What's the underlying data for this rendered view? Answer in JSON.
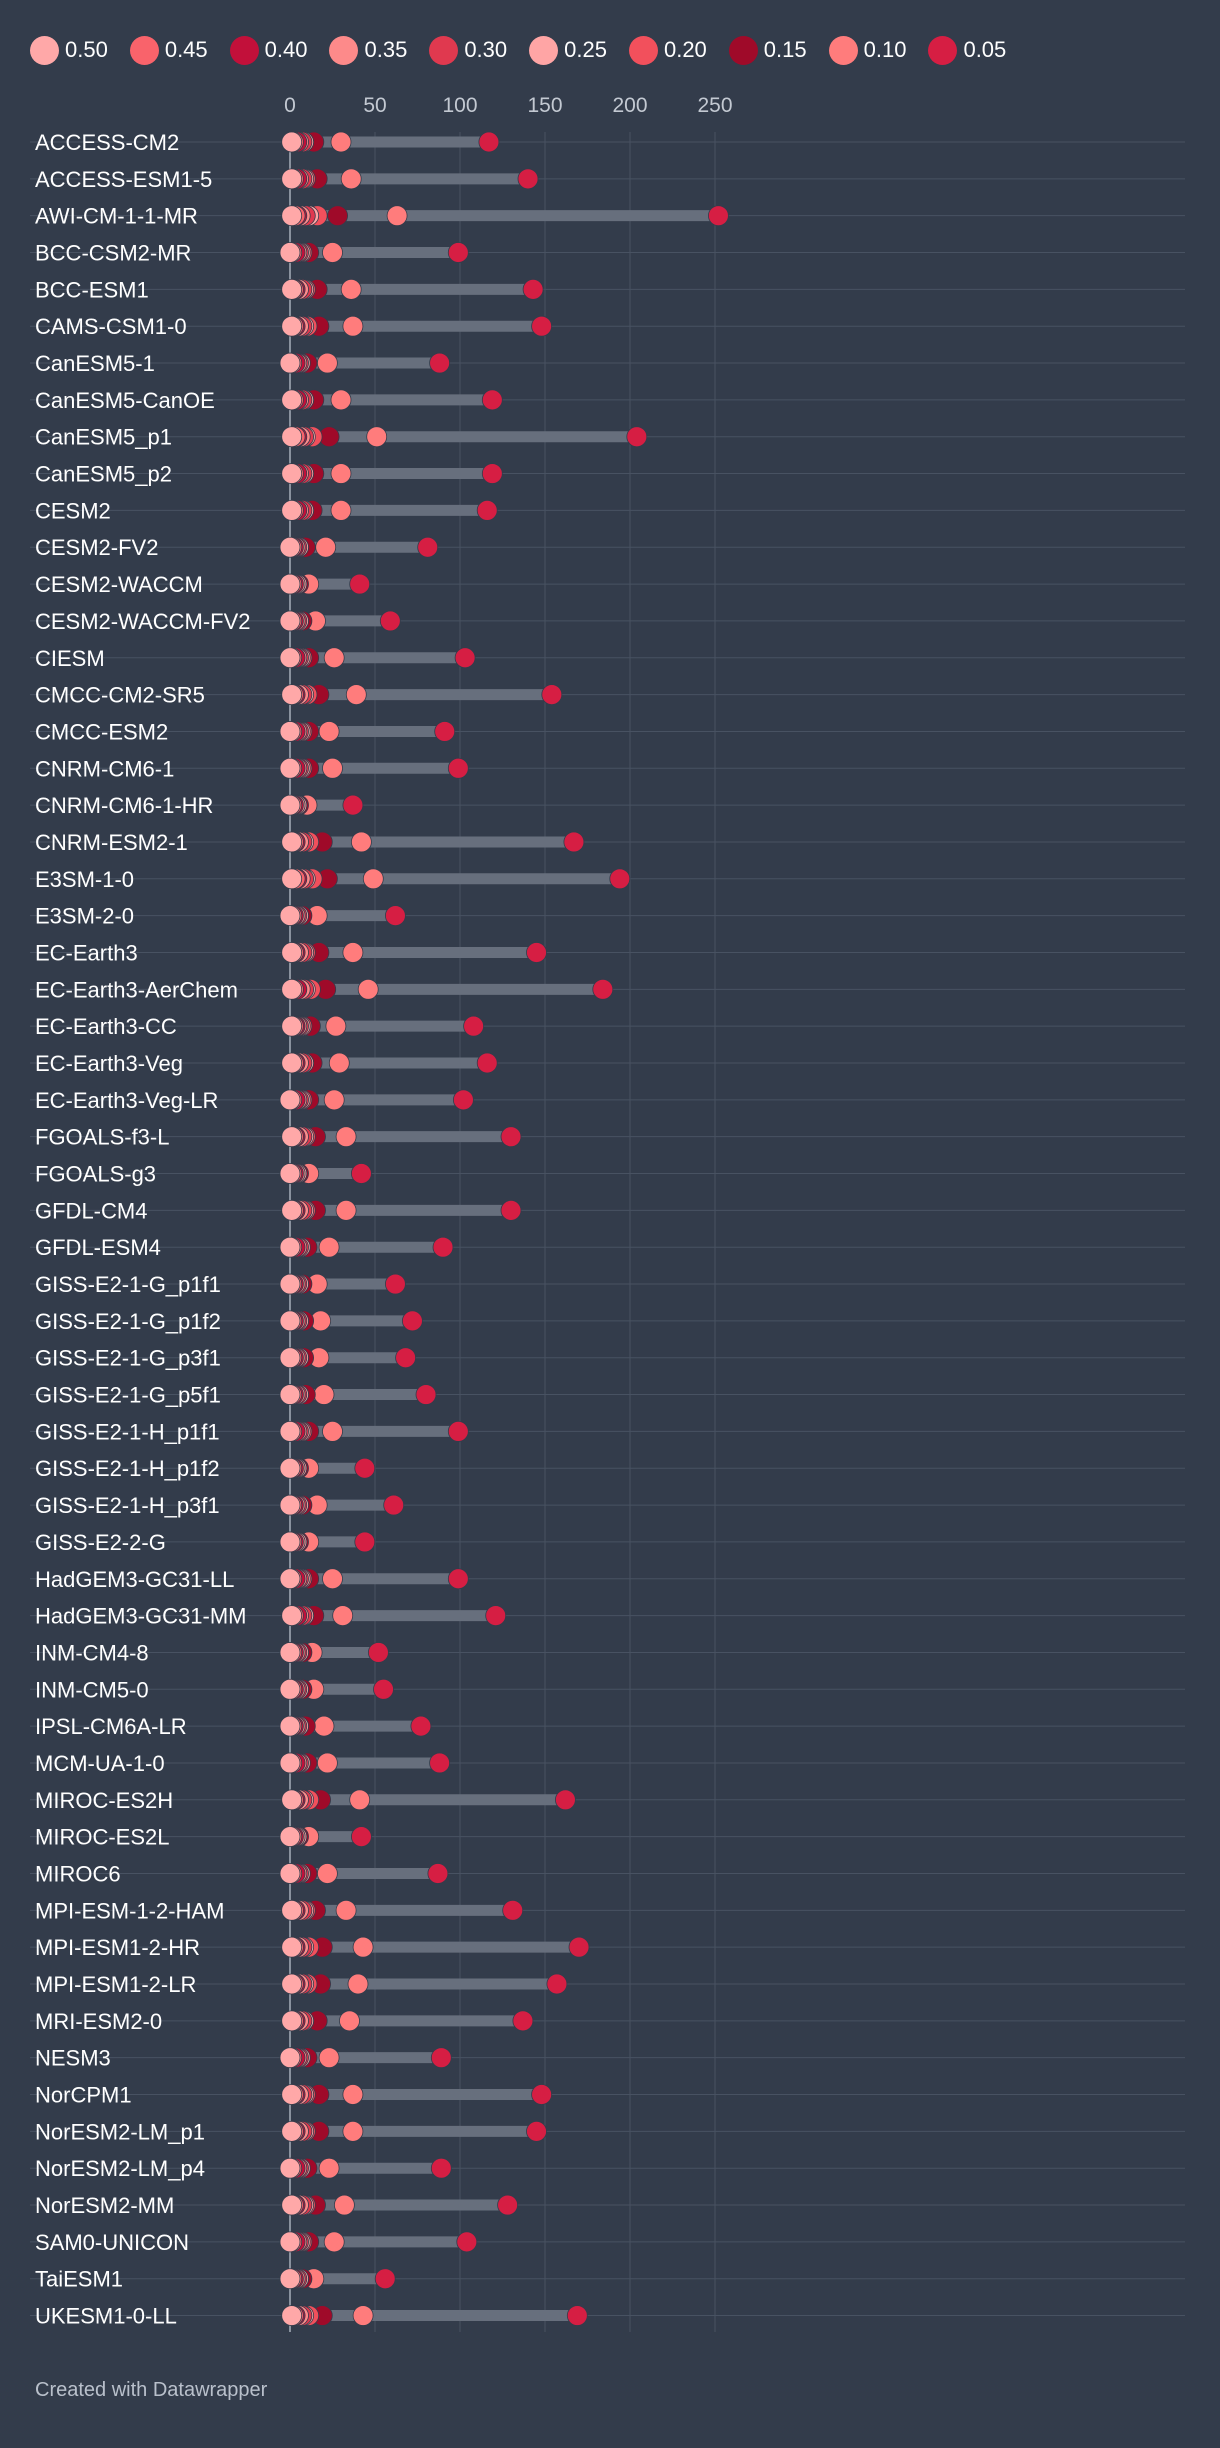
{
  "legend_title": "",
  "legend": [
    {
      "label": "0.50",
      "color": "#ffa8a8"
    },
    {
      "label": "0.45",
      "color": "#f9636b"
    },
    {
      "label": "0.40",
      "color": "#c2103a"
    },
    {
      "label": "0.35",
      "color": "#fd8a8a"
    },
    {
      "label": "0.30",
      "color": "#e0394f"
    },
    {
      "label": "0.25",
      "color": "#ffa5a5"
    },
    {
      "label": "0.20",
      "color": "#f2505c"
    },
    {
      "label": "0.15",
      "color": "#9f0a29"
    },
    {
      "label": "0.10",
      "color": "#ff7c7c"
    },
    {
      "label": "0.05",
      "color": "#d61e43"
    }
  ],
  "footer": "Created with Datawrapper",
  "style": {
    "background": "#333c4b",
    "grid": "#485262",
    "track": "#676f7d",
    "label": "#ffffff",
    "tick": "#c3c9d2",
    "zero_line": "#8a929e",
    "dot_outline": "#333c4b"
  },
  "chart_data": {
    "type": "dot-range",
    "title": "",
    "xlabel": "",
    "ylabel": "",
    "x_ticks": [
      0,
      50,
      100,
      150,
      200,
      250
    ],
    "xlim": [
      0,
      265
    ],
    "grid": true,
    "legend_position": "top",
    "levels": [
      "0.50",
      "0.45",
      "0.40",
      "0.35",
      "0.30",
      "0.25",
      "0.20",
      "0.15",
      "0.10",
      "0.05"
    ],
    "rows": [
      {
        "model": "ACCESS-CM2",
        "values": [
          1,
          2,
          4,
          5,
          7,
          8,
          8,
          14,
          30,
          117
        ]
      },
      {
        "model": "ACCESS-ESM1-5",
        "values": [
          1,
          2,
          4,
          5,
          7,
          8,
          9,
          16,
          36,
          140
        ]
      },
      {
        "model": "AWI-CM-1-1-MR",
        "values": [
          1,
          3,
          4,
          6,
          9,
          11,
          16,
          28,
          63,
          252
        ]
      },
      {
        "model": "BCC-CSM2-MR",
        "values": [
          0,
          1,
          3,
          4,
          5,
          6,
          7,
          11,
          25,
          99
        ]
      },
      {
        "model": "BCC-ESM1",
        "values": [
          1,
          2,
          3,
          5,
          7,
          8,
          9,
          16,
          36,
          143
        ]
      },
      {
        "model": "CAMS-CSM1-0",
        "values": [
          1,
          2,
          3,
          5,
          7,
          8,
          10,
          17,
          37,
          148
        ]
      },
      {
        "model": "CanESM5-1",
        "values": [
          0,
          1,
          3,
          4,
          5,
          6,
          6,
          10,
          22,
          88
        ]
      },
      {
        "model": "CanESM5-CanOE",
        "values": [
          1,
          2,
          4,
          5,
          7,
          8,
          8,
          14,
          30,
          119
        ]
      },
      {
        "model": "CanESM5_p1",
        "values": [
          1,
          3,
          4,
          6,
          8,
          9,
          13,
          23,
          51,
          204
        ]
      },
      {
        "model": "CanESM5_p2",
        "values": [
          1,
          2,
          4,
          5,
          7,
          8,
          8,
          14,
          30,
          119
        ]
      },
      {
        "model": "CESM2",
        "values": [
          1,
          2,
          4,
          5,
          7,
          8,
          8,
          13,
          30,
          116
        ]
      },
      {
        "model": "CESM2-FV2",
        "values": [
          0,
          1,
          2,
          3,
          4,
          5,
          5,
          9,
          21,
          81
        ]
      },
      {
        "model": "CESM2-WACCM",
        "values": [
          0,
          1,
          2,
          3,
          3,
          4,
          4,
          5,
          11,
          41
        ]
      },
      {
        "model": "CESM2-WACCM-FV2",
        "values": [
          0,
          1,
          2,
          3,
          4,
          5,
          5,
          7,
          15,
          59
        ]
      },
      {
        "model": "CIESM",
        "values": [
          0,
          1,
          3,
          4,
          5,
          6,
          7,
          11,
          26,
          103
        ]
      },
      {
        "model": "CMCC-CM2-SR5",
        "values": [
          1,
          2,
          3,
          5,
          7,
          8,
          10,
          17,
          39,
          154
        ]
      },
      {
        "model": "CMCC-ESM2",
        "values": [
          0,
          1,
          3,
          4,
          5,
          6,
          7,
          11,
          23,
          91
        ]
      },
      {
        "model": "CNRM-CM6-1",
        "values": [
          0,
          1,
          3,
          4,
          5,
          6,
          7,
          11,
          25,
          99
        ]
      },
      {
        "model": "CNRM-CM6-1-HR",
        "values": [
          0,
          1,
          2,
          3,
          3,
          4,
          4,
          5,
          10,
          37
        ]
      },
      {
        "model": "CNRM-ESM2-1",
        "values": [
          1,
          2,
          3,
          5,
          7,
          8,
          11,
          19,
          42,
          167
        ]
      },
      {
        "model": "E3SM-1-0",
        "values": [
          1,
          3,
          4,
          6,
          8,
          9,
          13,
          22,
          49,
          194
        ]
      },
      {
        "model": "E3SM-2-0",
        "values": [
          0,
          1,
          2,
          3,
          4,
          5,
          5,
          7,
          16,
          62
        ]
      },
      {
        "model": "EC-Earth3",
        "values": [
          1,
          2,
          3,
          5,
          7,
          8,
          9,
          17,
          37,
          145
        ]
      },
      {
        "model": "EC-Earth3-AerChem",
        "values": [
          1,
          2,
          4,
          6,
          8,
          9,
          12,
          21,
          46,
          184
        ]
      },
      {
        "model": "EC-Earth3-CC",
        "values": [
          1,
          2,
          3,
          4,
          5,
          6,
          7,
          12,
          27,
          108
        ]
      },
      {
        "model": "EC-Earth3-Veg",
        "values": [
          1,
          2,
          3,
          5,
          7,
          8,
          8,
          13,
          29,
          116
        ]
      },
      {
        "model": "EC-Earth3-Veg-LR",
        "values": [
          0,
          1,
          3,
          4,
          5,
          6,
          7,
          11,
          26,
          102
        ]
      },
      {
        "model": "FGOALS-f3-L",
        "values": [
          1,
          2,
          3,
          5,
          7,
          8,
          9,
          15,
          33,
          130
        ]
      },
      {
        "model": "FGOALS-g3",
        "values": [
          0,
          1,
          2,
          3,
          3,
          4,
          4,
          5,
          11,
          42
        ]
      },
      {
        "model": "GFDL-CM4",
        "values": [
          1,
          2,
          3,
          5,
          7,
          8,
          9,
          15,
          33,
          130
        ]
      },
      {
        "model": "GFDL-ESM4",
        "values": [
          0,
          1,
          3,
          4,
          5,
          6,
          6,
          10,
          23,
          90
        ]
      },
      {
        "model": "GISS-E2-1-G_p1f1",
        "values": [
          0,
          1,
          2,
          3,
          4,
          5,
          5,
          7,
          16,
          62
        ]
      },
      {
        "model": "GISS-E2-1-G_p1f2",
        "values": [
          0,
          1,
          2,
          3,
          4,
          5,
          5,
          8,
          18,
          72
        ]
      },
      {
        "model": "GISS-E2-1-G_p3f1",
        "values": [
          0,
          1,
          2,
          3,
          4,
          5,
          5,
          8,
          17,
          68
        ]
      },
      {
        "model": "GISS-E2-1-G_p5f1",
        "values": [
          0,
          1,
          2,
          3,
          4,
          5,
          5,
          9,
          20,
          80
        ]
      },
      {
        "model": "GISS-E2-1-H_p1f1",
        "values": [
          0,
          1,
          3,
          4,
          5,
          6,
          7,
          11,
          25,
          99
        ]
      },
      {
        "model": "GISS-E2-1-H_p1f2",
        "values": [
          0,
          1,
          2,
          3,
          3,
          4,
          4,
          5,
          11,
          44
        ]
      },
      {
        "model": "GISS-E2-1-H_p3f1",
        "values": [
          0,
          1,
          2,
          3,
          4,
          5,
          5,
          7,
          16,
          61
        ]
      },
      {
        "model": "GISS-E2-2-G",
        "values": [
          0,
          1,
          2,
          3,
          3,
          4,
          4,
          5,
          11,
          44
        ]
      },
      {
        "model": "HadGEM3-GC31-LL",
        "values": [
          0,
          1,
          3,
          4,
          5,
          6,
          7,
          11,
          25,
          99
        ]
      },
      {
        "model": "HadGEM3-GC31-MM",
        "values": [
          1,
          2,
          4,
          5,
          7,
          8,
          8,
          14,
          31,
          121
        ]
      },
      {
        "model": "INM-CM4-8",
        "values": [
          0,
          1,
          2,
          3,
          4,
          5,
          5,
          7,
          13,
          52
        ]
      },
      {
        "model": "INM-CM5-0",
        "values": [
          0,
          1,
          2,
          3,
          4,
          5,
          5,
          7,
          14,
          55
        ]
      },
      {
        "model": "IPSL-CM6A-LR",
        "values": [
          0,
          1,
          2,
          3,
          4,
          5,
          5,
          9,
          20,
          77
        ]
      },
      {
        "model": "MCM-UA-1-0",
        "values": [
          0,
          1,
          3,
          4,
          5,
          6,
          6,
          10,
          22,
          88
        ]
      },
      {
        "model": "MIROC-ES2H",
        "values": [
          1,
          2,
          3,
          5,
          7,
          8,
          11,
          18,
          41,
          162
        ]
      },
      {
        "model": "MIROC-ES2L",
        "values": [
          0,
          1,
          2,
          3,
          3,
          4,
          4,
          5,
          11,
          42
        ]
      },
      {
        "model": "MIROC6",
        "values": [
          0,
          1,
          3,
          4,
          5,
          6,
          6,
          10,
          22,
          87
        ]
      },
      {
        "model": "MPI-ESM-1-2-HAM",
        "values": [
          1,
          2,
          3,
          5,
          7,
          8,
          9,
          15,
          33,
          131
        ]
      },
      {
        "model": "MPI-ESM1-2-HR",
        "values": [
          1,
          2,
          3,
          5,
          7,
          8,
          11,
          19,
          43,
          170
        ]
      },
      {
        "model": "MPI-ESM1-2-LR",
        "values": [
          1,
          2,
          3,
          5,
          7,
          8,
          10,
          18,
          40,
          157
        ]
      },
      {
        "model": "MRI-ESM2-0",
        "values": [
          1,
          2,
          3,
          5,
          7,
          8,
          8,
          16,
          35,
          137
        ]
      },
      {
        "model": "NESM3",
        "values": [
          0,
          1,
          3,
          4,
          5,
          6,
          6,
          10,
          23,
          89
        ]
      },
      {
        "model": "NorCPM1",
        "values": [
          1,
          2,
          3,
          5,
          7,
          8,
          9,
          17,
          37,
          148
        ]
      },
      {
        "model": "NorESM2-LM_p1",
        "values": [
          1,
          2,
          3,
          5,
          7,
          8,
          9,
          17,
          37,
          145
        ]
      },
      {
        "model": "NorESM2-LM_p4",
        "values": [
          0,
          1,
          3,
          4,
          5,
          6,
          6,
          10,
          23,
          89
        ]
      },
      {
        "model": "NorESM2-MM",
        "values": [
          1,
          2,
          3,
          5,
          7,
          8,
          9,
          15,
          32,
          128
        ]
      },
      {
        "model": "SAM0-UNICON",
        "values": [
          0,
          1,
          3,
          4,
          5,
          6,
          7,
          11,
          26,
          104
        ]
      },
      {
        "model": "TaiESM1",
        "values": [
          0,
          1,
          2,
          3,
          4,
          5,
          5,
          7,
          14,
          56
        ]
      },
      {
        "model": "UKESM1-0-LL",
        "values": [
          1,
          2,
          3,
          5,
          7,
          8,
          11,
          19,
          43,
          169
        ]
      }
    ]
  }
}
